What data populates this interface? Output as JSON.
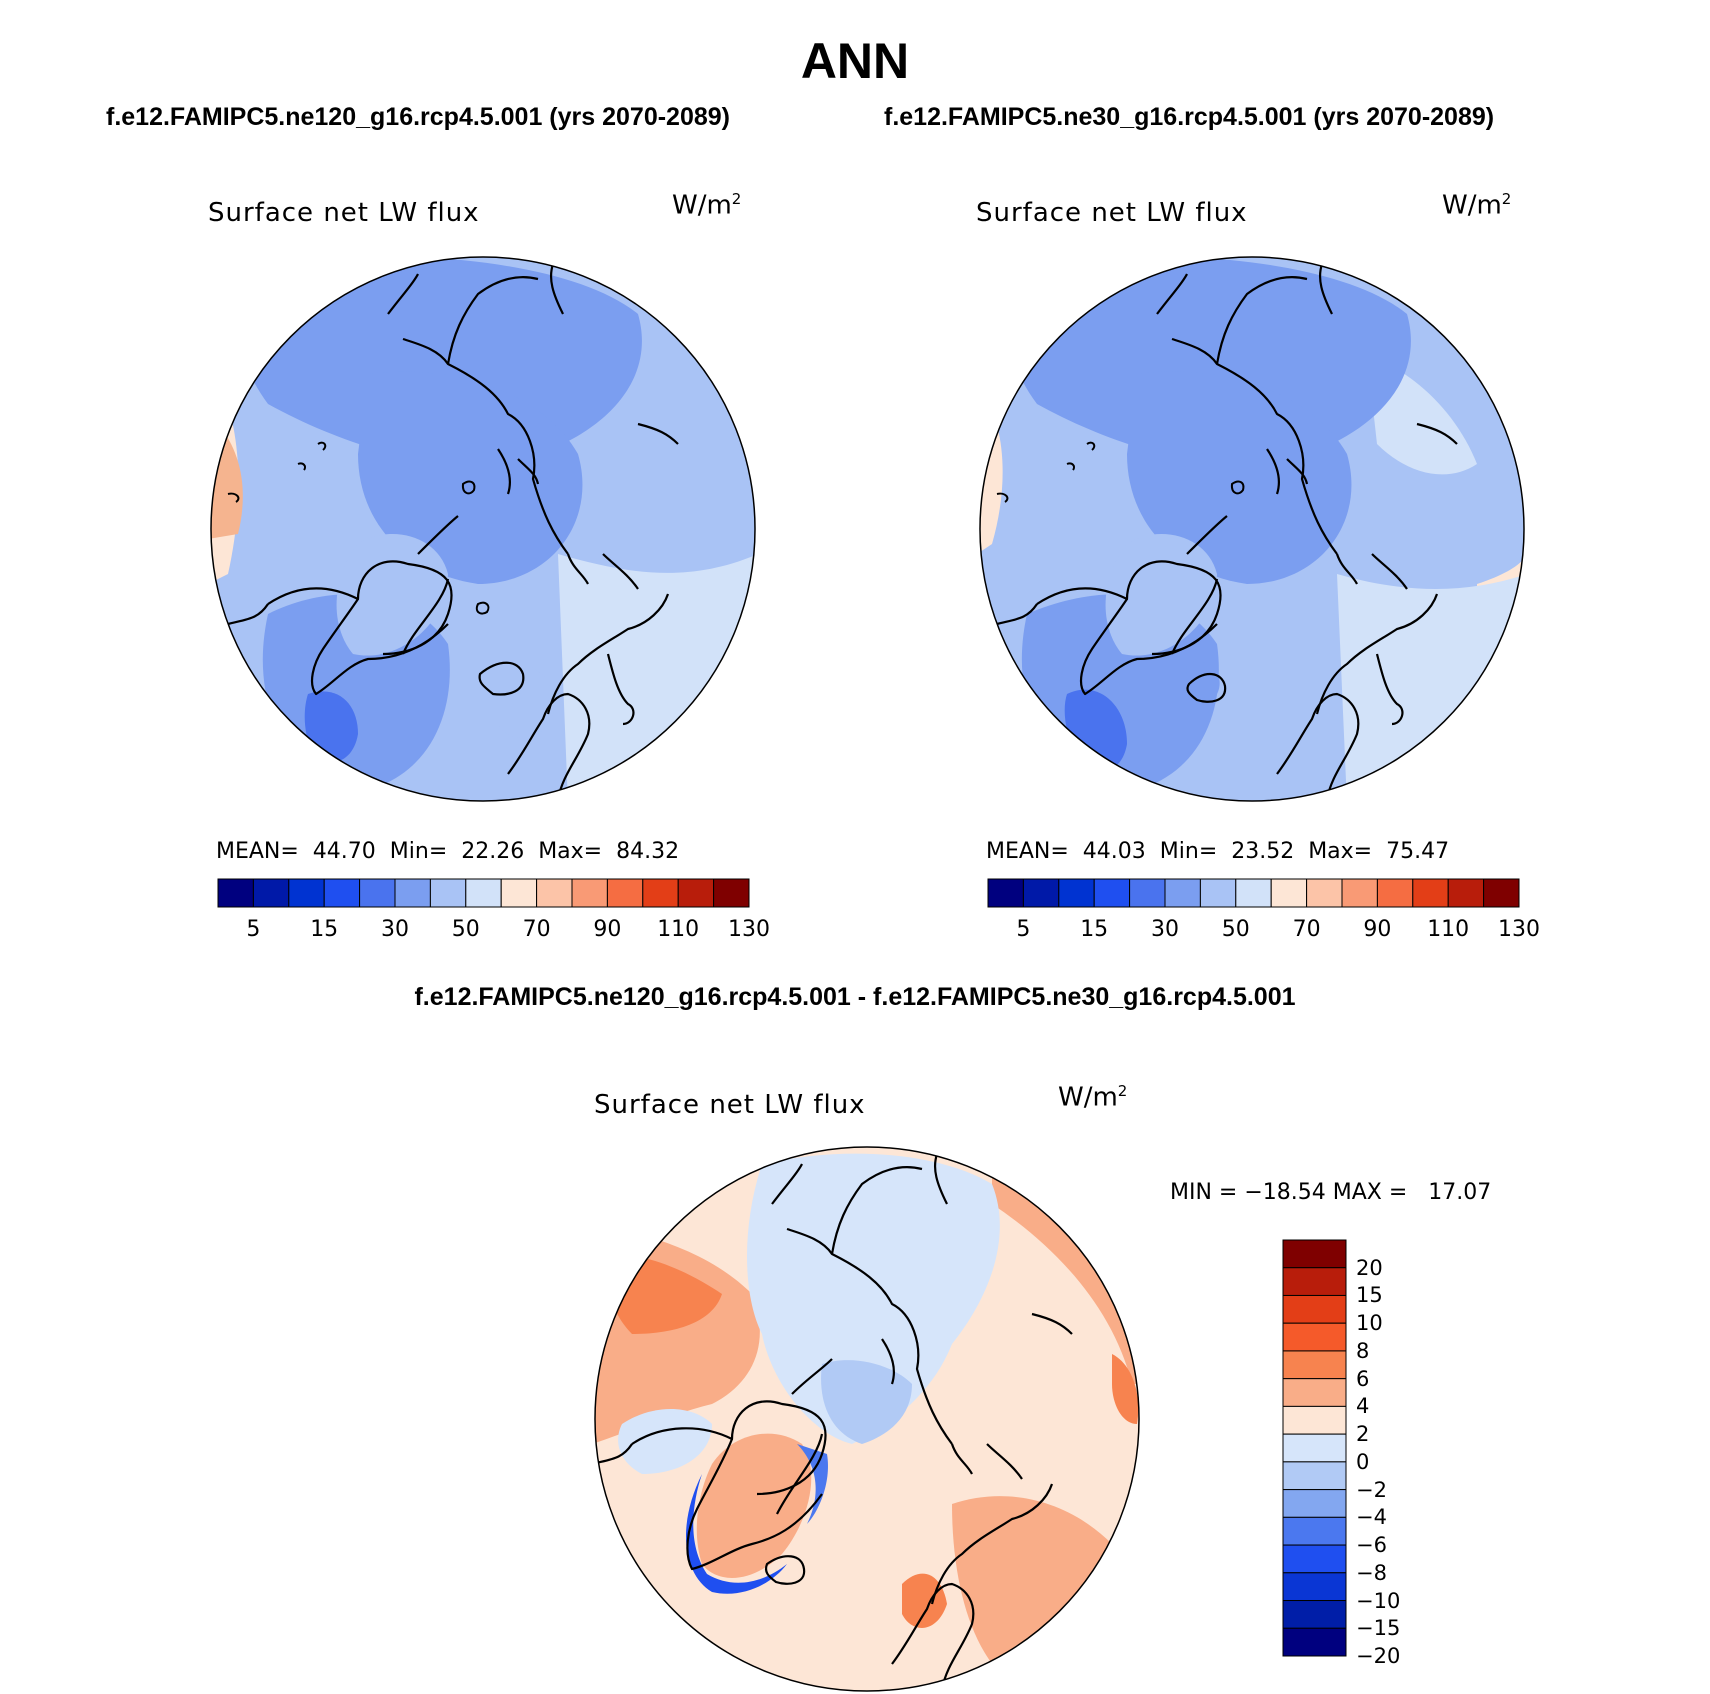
{
  "title": "ANN",
  "run_left": "f.e12.FAMIPC5.ne120_g16.rcp4.5.001 (yrs 2070-2089)",
  "run_right": "f.e12.FAMIPC5.ne30_g16.rcp4.5.001 (yrs 2070-2089)",
  "diff_title": "f.e12.FAMIPC5.ne120_g16.rcp4.5.001 - f.e12.FAMIPC5.ne30_g16.rcp4.5.001",
  "panels": {
    "left": {
      "variable": "Surface net LW flux",
      "units": "W/m",
      "units_exp": "2",
      "stats": "MEAN=  44.70  Min=  22.26  Max=  84.32"
    },
    "right": {
      "variable": "Surface net LW flux",
      "units": "W/m",
      "units_exp": "2",
      "stats": "MEAN=  44.03  Min=  23.52  Max=  75.47"
    },
    "diff": {
      "variable": "Surface net LW flux",
      "units": "W/m",
      "units_exp": "2",
      "stats": "MIN = −18.54 MAX =   17.07"
    }
  },
  "abs_colorbar": {
    "colors": [
      "#00007f",
      "#0019a8",
      "#0033d1",
      "#1f4ff0",
      "#4a73ee",
      "#7b9ef0",
      "#a9c3f5",
      "#d2e2f9",
      "#fde6d6",
      "#fcc4a8",
      "#f99a75",
      "#f56d42",
      "#e33e17",
      "#b81d0b",
      "#7f0000"
    ],
    "tick_labels": [
      "5",
      "15",
      "30",
      "50",
      "70",
      "90",
      "110",
      "130"
    ]
  },
  "diff_colorbar": {
    "colors": [
      "#7f0000",
      "#b81d0b",
      "#e33e17",
      "#f55a2a",
      "#f7834f",
      "#f9ad88",
      "#fde6d6",
      "#d6e5fa",
      "#b1caf5",
      "#83a7f0",
      "#4b78ef",
      "#1f4ff0",
      "#0a36d4",
      "#001ea8",
      "#00007f"
    ],
    "labels": [
      "20",
      "15",
      "10",
      "8",
      "6",
      "4",
      "2",
      "0",
      "−2",
      "−4",
      "−6",
      "−8",
      "−10",
      "−15",
      "−20"
    ]
  }
}
